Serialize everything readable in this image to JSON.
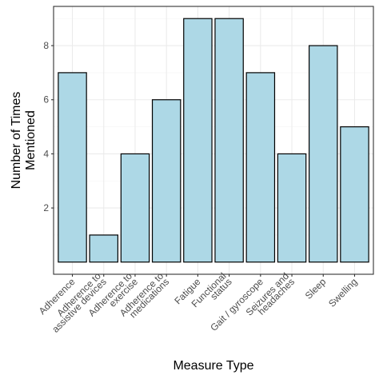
{
  "chart_data": {
    "type": "bar",
    "categories": [
      [
        "Adherence"
      ],
      [
        "Adherence to",
        "assistive devices"
      ],
      [
        "Adherence to",
        "exercise"
      ],
      [
        "Adherence to",
        "medications"
      ],
      [
        "Fatigue"
      ],
      [
        "Functional",
        "status"
      ],
      [
        "Gait / gyroscope"
      ],
      [
        "Seizures and",
        "headaches"
      ],
      [
        "Sleep"
      ],
      [
        "Swelling"
      ]
    ],
    "values": [
      7,
      1,
      4,
      6,
      9,
      9,
      7,
      4,
      8,
      5
    ],
    "xlabel": "Measure Type",
    "ylabel": [
      "Number of Times",
      "Mentioned"
    ],
    "yticks": [
      2,
      4,
      6,
      8
    ],
    "ylim": [
      -0.45,
      9.45
    ],
    "grid": true,
    "colors": {
      "bar_fill": "#add8e6",
      "bar_stroke": "#000000",
      "grid_major": "#ebebeb",
      "grid_minor": "#f5f5f5",
      "panel_border": "#333333"
    }
  }
}
